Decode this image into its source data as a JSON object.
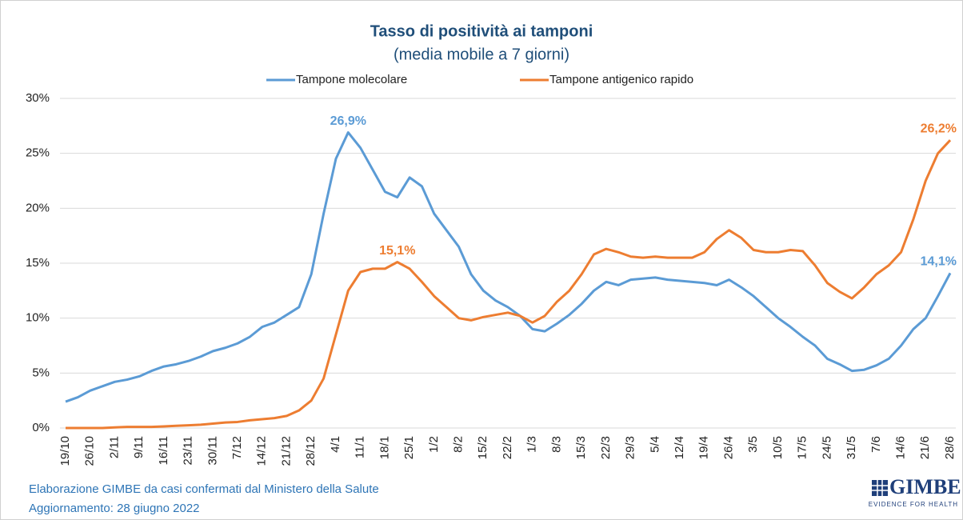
{
  "chart_data": {
    "type": "line",
    "title": "Tasso di positività ai tamponi",
    "subtitle": "(media mobile a 7 giorni)",
    "categories": [
      "19/10",
      null,
      "26/10",
      null,
      "2/11",
      null,
      "9/11",
      null,
      "16/11",
      null,
      "23/11",
      null,
      "30/11",
      null,
      "7/12",
      null,
      "14/12",
      null,
      "21/12",
      null,
      "28/12",
      null,
      "4/1",
      null,
      "11/1",
      null,
      "18/1",
      null,
      "25/1",
      null,
      "1/2",
      null,
      "8/2",
      null,
      "15/2",
      null,
      "22/2",
      null,
      "1/3",
      null,
      "8/3",
      null,
      "15/3",
      null,
      "22/3",
      null,
      "29/3",
      null,
      "5/4",
      null,
      "12/4",
      null,
      "19/4",
      null,
      "26/4",
      null,
      "3/5",
      null,
      "10/5",
      null,
      "17/5",
      null,
      "24/5",
      null,
      "31/5",
      null,
      "7/6",
      null,
      "14/6",
      null,
      "21/6",
      null,
      "28/6"
    ],
    "series": [
      {
        "name": "Tampone molecolare",
        "color": "#5b9bd5",
        "values": [
          2.4,
          2.8,
          3.4,
          3.8,
          4.2,
          4.4,
          4.7,
          5.2,
          5.6,
          5.8,
          6.1,
          6.5,
          7.0,
          7.3,
          7.7,
          8.3,
          9.2,
          9.6,
          10.3,
          11.0,
          14.0,
          19.5,
          24.5,
          26.9,
          25.5,
          23.5,
          21.5,
          21.0,
          22.8,
          22.0,
          19.5,
          18.0,
          16.5,
          14.0,
          12.5,
          11.6,
          11.0,
          10.2,
          9.0,
          8.8,
          9.5,
          10.3,
          11.3,
          12.5,
          13.3,
          13.0,
          13.5,
          13.6,
          13.7,
          13.5,
          13.4,
          13.3,
          13.2,
          13.0,
          13.5,
          12.8,
          12.0,
          11.0,
          10.0,
          9.2,
          8.3,
          7.5,
          6.3,
          5.8,
          5.2,
          5.3,
          5.7,
          6.3,
          7.5,
          9.0,
          10.0,
          12.0,
          14.1
        ],
        "value_labels": [
          null,
          null,
          null,
          null,
          null,
          null,
          null,
          null,
          null,
          null,
          null,
          null,
          null,
          null,
          null,
          null,
          null,
          null,
          null,
          null,
          null,
          null,
          null,
          "26,9%",
          null,
          null,
          null,
          null,
          null,
          null,
          null,
          null,
          null,
          null,
          null,
          null,
          null,
          null,
          null,
          null,
          null,
          null,
          null,
          null,
          null,
          null,
          null,
          null,
          null,
          null,
          null,
          null,
          null,
          null,
          null,
          null,
          null,
          null,
          null,
          null,
          null,
          null,
          null,
          null,
          null,
          null,
          null,
          null,
          null,
          null,
          null,
          null,
          "14,1%"
        ]
      },
      {
        "name": "Tampone antigenico rapido",
        "color": "#ed7d31",
        "values": [
          0,
          0,
          0,
          0,
          0.05,
          0.1,
          0.1,
          0.1,
          0.15,
          0.2,
          0.25,
          0.3,
          0.4,
          0.5,
          0.55,
          0.7,
          0.8,
          0.9,
          1.1,
          1.6,
          2.5,
          4.5,
          8.5,
          12.5,
          14.2,
          14.5,
          14.5,
          15.1,
          14.5,
          13.3,
          12.0,
          11.0,
          10.0,
          9.8,
          10.1,
          10.3,
          10.5,
          10.2,
          9.6,
          10.2,
          11.5,
          12.5,
          14.0,
          15.8,
          16.3,
          16.0,
          15.6,
          15.5,
          15.6,
          15.5,
          15.5,
          15.5,
          16.0,
          17.2,
          18.0,
          17.3,
          16.2,
          16.0,
          16.0,
          16.2,
          16.1,
          14.8,
          13.2,
          12.4,
          11.8,
          12.8,
          14.0,
          14.8,
          16.0,
          19.0,
          22.5,
          25.0,
          26.2
        ],
        "value_labels": [
          null,
          null,
          null,
          null,
          null,
          null,
          null,
          null,
          null,
          null,
          null,
          null,
          null,
          null,
          null,
          null,
          null,
          null,
          null,
          null,
          null,
          null,
          null,
          null,
          null,
          null,
          null,
          "15,1%",
          null,
          null,
          null,
          null,
          null,
          null,
          null,
          null,
          null,
          null,
          null,
          null,
          null,
          null,
          null,
          null,
          null,
          null,
          null,
          null,
          null,
          null,
          null,
          null,
          null,
          null,
          null,
          null,
          null,
          null,
          null,
          null,
          null,
          null,
          null,
          null,
          null,
          null,
          null,
          null,
          null,
          null,
          null,
          null,
          "26,2%"
        ]
      }
    ],
    "ylim": [
      0,
      30
    ],
    "yticks": [
      {
        "value": 0,
        "label": "0%"
      },
      {
        "value": 5,
        "label": "5%"
      },
      {
        "value": 10,
        "label": "10%"
      },
      {
        "value": 15,
        "label": "15%"
      },
      {
        "value": 20,
        "label": "20%"
      },
      {
        "value": 25,
        "label": "25%"
      },
      {
        "value": 30,
        "label": "30%"
      }
    ],
    "grid": true,
    "legend": "top",
    "source": "Elaborazione GIMBE da casi confermati dal Ministero della Salute",
    "updated": "Aggiornamento: 28 giugno 2022",
    "logo": "GIMBE",
    "logo_tagline": "EVIDENCE FOR HEALTH"
  }
}
